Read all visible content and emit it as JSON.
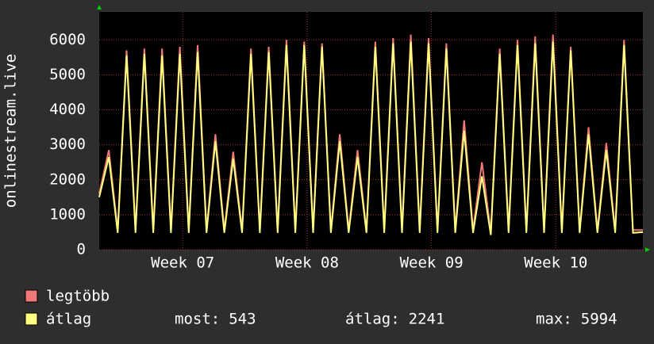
{
  "chart_data": {
    "type": "line",
    "ylabel": "onlinestream.live",
    "x": [
      0,
      0.54,
      1.04,
      1.54,
      2.04,
      2.54,
      3.04,
      3.54,
      4.04,
      4.54,
      5.04,
      5.54,
      6.04,
      6.54,
      7.04,
      7.54,
      8.04,
      8.54,
      9.04,
      9.54,
      10.04,
      10.54,
      11.04,
      11.54,
      12.04,
      12.54,
      13.04,
      13.54,
      14.04,
      14.54,
      15.04,
      15.54,
      16.04,
      16.54,
      17.04,
      17.54,
      18.04,
      18.54,
      19.04,
      19.54,
      20.04,
      20.54,
      21.04,
      21.54,
      22.04,
      22.54,
      23.04,
      23.54,
      24.04,
      24.54,
      25.04,
      25.54,
      26.04,
      26.54,
      27.04,
      27.54,
      28.04,
      28.54,
      29.04,
      29.54,
      30.04,
      30.6
    ],
    "series": [
      {
        "name": "legtöbb",
        "color": "#f07878",
        "values": [
          1600,
          2850,
          560,
          5700,
          560,
          5750,
          560,
          5750,
          560,
          5800,
          560,
          5850,
          560,
          3300,
          560,
          2800,
          560,
          5750,
          560,
          5800,
          560,
          6000,
          560,
          5950,
          560,
          5900,
          560,
          3300,
          560,
          2850,
          560,
          5950,
          560,
          6050,
          560,
          6150,
          560,
          6050,
          560,
          5900,
          560,
          3700,
          560,
          2500,
          500,
          5750,
          560,
          6000,
          560,
          6100,
          560,
          6150,
          560,
          5800,
          560,
          3500,
          560,
          3050,
          560,
          6000,
          560,
          560
        ]
      },
      {
        "name": "átlag",
        "color": "#ffff80",
        "values": [
          1500,
          2650,
          480,
          5550,
          480,
          5600,
          480,
          5550,
          480,
          5600,
          480,
          5650,
          480,
          3100,
          480,
          2600,
          480,
          5600,
          480,
          5650,
          480,
          5850,
          480,
          5850,
          480,
          5800,
          480,
          3100,
          480,
          2650,
          480,
          5800,
          480,
          5900,
          480,
          5950,
          480,
          5900,
          480,
          5750,
          480,
          3400,
          480,
          2100,
          420,
          5600,
          480,
          5850,
          480,
          5900,
          480,
          5950,
          480,
          5700,
          480,
          3300,
          480,
          2850,
          480,
          5850,
          480,
          500
        ]
      }
    ],
    "xlim": [
      0,
      30.6
    ],
    "xticks": [
      {
        "value": 4.7,
        "label": "Week 07"
      },
      {
        "value": 11.7,
        "label": "Week 08"
      },
      {
        "value": 18.7,
        "label": "Week 09"
      },
      {
        "value": 25.7,
        "label": "Week 10"
      }
    ],
    "ylim": [
      0,
      6800
    ],
    "yticks": [
      0,
      1000,
      2000,
      3000,
      4000,
      5000,
      6000
    ],
    "grid": true,
    "stats": [
      {
        "label": "most:",
        "value": 543
      },
      {
        "label": "átlag:",
        "value": 2241
      },
      {
        "label": "max:",
        "value": 5994
      }
    ]
  }
}
